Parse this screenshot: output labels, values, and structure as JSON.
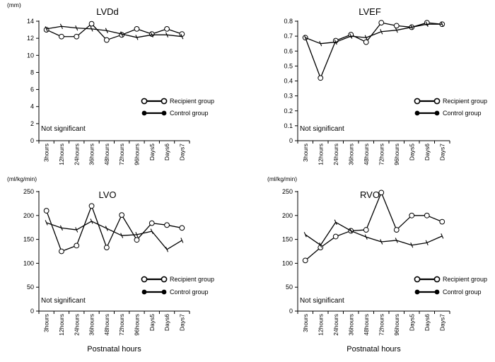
{
  "x_categories": [
    "3hours",
    "12hours",
    "24hours",
    "36hours",
    "48hours",
    "72hours",
    "96hours",
    "Days5",
    "Days6",
    "Days7"
  ],
  "legend": {
    "recipient": "Recipient group",
    "control": "Control group"
  },
  "colors": {
    "line": "#000000",
    "background": "#ffffff"
  },
  "chart_data": [
    {
      "type": "line",
      "title": "LVDd",
      "ylabel": "(mm)",
      "xlabel": "",
      "ylim": [
        0,
        14
      ],
      "yticks": [
        0,
        2,
        4,
        6,
        8,
        10,
        12,
        14
      ],
      "annotation": "Not significant",
      "legend_position": "lower-right",
      "categories": [
        "3hours",
        "12hours",
        "24hours",
        "36hours",
        "48hours",
        "72hours",
        "96hours",
        "Days5",
        "Days6",
        "Days7"
      ],
      "series": [
        {
          "name": "Recipient group",
          "marker": "open-circle",
          "values": [
            13.0,
            12.2,
            12.2,
            13.7,
            11.8,
            12.4,
            13.1,
            12.5,
            13.1,
            12.5
          ]
        },
        {
          "name": "Control group",
          "marker": "tick",
          "values": [
            13.1,
            13.4,
            13.2,
            13.1,
            12.9,
            12.5,
            12.1,
            12.4,
            12.4,
            12.2
          ]
        }
      ]
    },
    {
      "type": "line",
      "title": "LVEF",
      "ylabel": "",
      "xlabel": "",
      "ylim": [
        0,
        0.8
      ],
      "yticks": [
        0,
        0.1,
        0.2,
        0.3,
        0.4,
        0.5,
        0.6,
        0.7,
        0.8
      ],
      "annotation": "Not significant",
      "legend_position": "lower-right",
      "categories": [
        "3hours",
        "12hours",
        "24hours",
        "36hours",
        "48hours",
        "72hours",
        "96hours",
        "Days5",
        "Days6",
        "Days7"
      ],
      "series": [
        {
          "name": "Recipient group",
          "marker": "open-circle",
          "values": [
            0.69,
            0.42,
            0.67,
            0.71,
            0.66,
            0.79,
            0.77,
            0.76,
            0.79,
            0.78
          ]
        },
        {
          "name": "Control group",
          "marker": "tick",
          "values": [
            0.69,
            0.65,
            0.66,
            0.7,
            0.69,
            0.73,
            0.74,
            0.76,
            0.78,
            0.78
          ]
        }
      ]
    },
    {
      "type": "line",
      "title": "LVO",
      "ylabel": "(ml/kg/min)",
      "xlabel": "Postnatal hours",
      "ylim": [
        0,
        250
      ],
      "yticks": [
        0,
        50,
        100,
        150,
        200,
        250
      ],
      "annotation": "Not significant",
      "legend_position": "lower-right",
      "categories": [
        "3hours",
        "12hours",
        "24hours",
        "36hours",
        "48hours",
        "72hours",
        "96hours",
        "Days5",
        "Days6",
        "Days7"
      ],
      "series": [
        {
          "name": "Recipient group",
          "marker": "open-circle",
          "values": [
            210,
            125,
            137,
            220,
            133,
            201,
            149,
            184,
            180,
            174
          ]
        },
        {
          "name": "Control group",
          "marker": "tick",
          "values": [
            185,
            174,
            170,
            188,
            173,
            158,
            160,
            167,
            129,
            148
          ]
        }
      ]
    },
    {
      "type": "line",
      "title": "RVO",
      "ylabel": "(ml/kg/min)",
      "xlabel": "Postnatal hours",
      "ylim": [
        0,
        250
      ],
      "yticks": [
        0,
        50,
        100,
        150,
        200,
        250
      ],
      "annotation": "Not significant",
      "legend_position": "lower-right",
      "categories": [
        "3hours",
        "12hours",
        "24hours",
        "36hours",
        "48hours",
        "72hours",
        "96hours",
        "Days5",
        "Days6",
        "Days7"
      ],
      "series": [
        {
          "name": "Recipient group",
          "marker": "open-circle",
          "values": [
            106,
            133,
            156,
            168,
            170,
            248,
            170,
            200,
            200,
            187
          ]
        },
        {
          "name": "Control group",
          "marker": "tick",
          "values": [
            160,
            138,
            186,
            168,
            155,
            145,
            148,
            138,
            143,
            157
          ]
        }
      ]
    }
  ]
}
